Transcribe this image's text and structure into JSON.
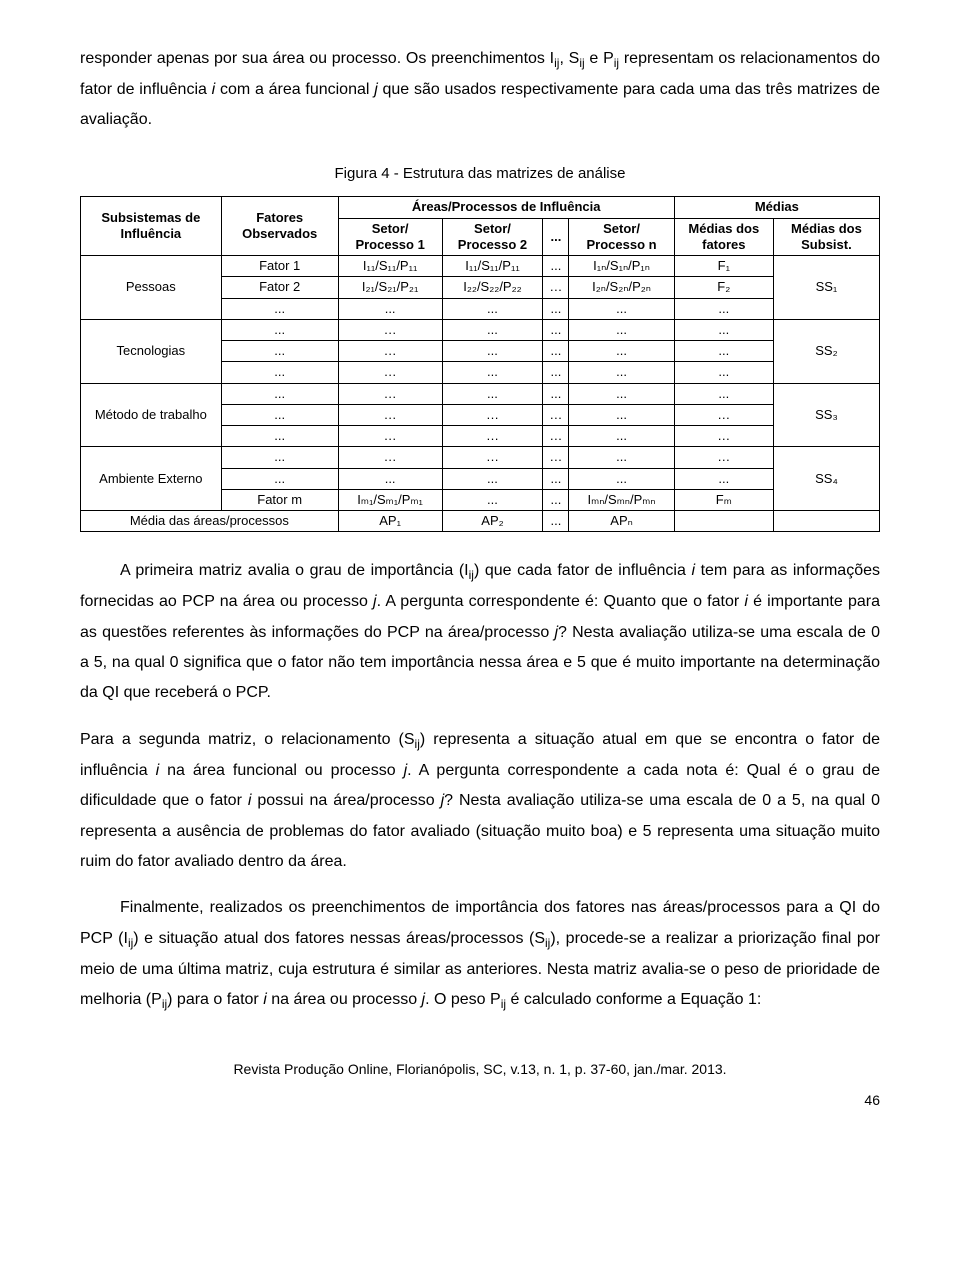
{
  "paragraphs": {
    "p1_a": "responder apenas por sua área ou processo. Os preenchimentos I",
    "p1_b": ", S",
    "p1_c": " e P",
    "p1_d": " representam os relacionamentos do fator de influência ",
    "p1_e": " com a área funcional ",
    "p1_f": " que são usados respectivamente para cada uma das três matrizes de avaliação.",
    "fig_caption": "Figura 4 - Estrutura das matrizes de análise",
    "p2_a": "A primeira matriz avalia o grau de importância (I",
    "p2_b": ") que cada fator de influência ",
    "p2_c": " tem para as informações fornecidas ao PCP na área ou processo ",
    "p2_d": ". A pergunta correspondente é: Quanto que o fator ",
    "p2_e": " é importante para as questões referentes às informações do PCP na área/processo ",
    "p2_f": "? Nesta avaliação utiliza-se uma escala de 0 a 5, na qual 0 significa que o fator não tem importância nessa área e 5 que é muito importante na determinação da QI que receberá o PCP.",
    "p3_a": "Para a segunda matriz, o relacionamento (S",
    "p3_b": ") representa a situação atual em que se encontra o fator de influência ",
    "p3_c": " na área funcional ou processo ",
    "p3_d": ". A pergunta correspondente a cada nota é: Qual é o grau de dificuldade que o fator ",
    "p3_e": " possui na área/processo ",
    "p3_f": "? Nesta avaliação utiliza-se uma escala de 0 a 5, na qual 0 representa a ausência de problemas do fator avaliado (situação muito boa) e 5 representa uma situação muito ruim do fator avaliado dentro da área.",
    "p4_a": "Finalmente, realizados os preenchimentos de importância dos fatores nas áreas/processos para a QI do PCP (I",
    "p4_b": ") e situação atual dos fatores nessas áreas/processos (S",
    "p4_c": "), procede-se a realizar a priorização final por meio de uma última matriz, cuja estrutura é similar as anteriores. Nesta matriz avalia-se o peso de prioridade de melhoria (P",
    "p4_d": ") para o fator ",
    "p4_e": " na área ou processo ",
    "p4_f": ". O peso P",
    "p4_g": " é calculado conforme a Equação 1:"
  },
  "subs": {
    "ij": "ij",
    "i": "i",
    "j": "j"
  },
  "table": {
    "header_areas": "Áreas/Processos de Influência",
    "header_medias": "Médias",
    "col_sub": "Subsistemas de Influência",
    "col_fat": "Fatores Observados",
    "col_sp1": "Setor/ Processo 1",
    "col_sp2": "Setor/ Processo 2",
    "col_dots": "...",
    "col_spn": "Setor/ Processo n",
    "col_mdf": "Médias dos fatores",
    "col_mds": "Médias dos Subsist.",
    "row_pessoas": "Pessoas",
    "row_tecno": "Tecnologias",
    "row_metodo": "Método de trabalho",
    "row_amb": "Ambiente Externo",
    "fator1": "Fator 1",
    "fator2": "Fator 2",
    "fatorm": "Fator m",
    "media_ap_label": "Média das áreas/processos",
    "c_f1_1": "I₁₁/S₁₁/P₁₁",
    "c_f1_2": "I₁₁/S₁₁/P₁₁",
    "c_f1_n": "I₁ₙ/S₁ₙ/P₁ₙ",
    "c_f1_m": "F₁",
    "c_f2_1": "I₂₁/S₂₁/P₂₁",
    "c_f2_2": "I₂₂/S₂₂/P₂₂",
    "c_f2_n": "I₂ₙ/S₂ₙ/P₂ₙ",
    "c_f2_m": "F₂",
    "c_fm_1": "Iₘ₁/Sₘ₁/Pₘ₁",
    "c_fm_n": "Iₘₙ/Sₘₙ/Pₘₙ",
    "c_fm_m": "Fₘ",
    "ap1": "AP₁",
    "ap2": "AP₂",
    "apn": "APₙ",
    "ss1": "SS₁",
    "ss2": "SS₂",
    "ss3": "SS₃",
    "ss4": "SS₄",
    "dots": "...",
    "ell": "…"
  },
  "footer": {
    "journal": "Revista Produção Online, Florianópolis, SC, v.13, n. 1, p. 37-60, jan./mar. 2013.",
    "page": "46"
  }
}
